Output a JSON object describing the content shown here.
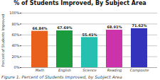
{
  "chart_data": {
    "type": "bar",
    "title": "% of Students Improved, By Subject Area",
    "ylabel": "Percent of Students Improved",
    "caption": "Figure 1. Percent of Students Improved, by Subject Area",
    "categories": [
      "Math",
      "English",
      "Science",
      "Reading",
      "Composite"
    ],
    "values": [
      66.84,
      67.69,
      55.41,
      68.91,
      71.62
    ],
    "value_labels": [
      "66.84%",
      "67.69%",
      "55.41%",
      "68.91%",
      "71.62%"
    ],
    "colors": [
      "#E8601C",
      "#1A9C3E",
      "#25C0B0",
      "#CC33AA",
      "#3333BB"
    ],
    "ylim": [
      0,
      100
    ],
    "yticks": [
      {
        "value": 0,
        "label": "0%"
      },
      {
        "value": 20,
        "label": "20%"
      },
      {
        "value": 40,
        "label": "40%"
      },
      {
        "value": 60,
        "label": "60%"
      },
      {
        "value": 80,
        "label": "80%"
      },
      {
        "value": 100,
        "label": "100%"
      }
    ],
    "grid": true,
    "data_labels": true
  }
}
